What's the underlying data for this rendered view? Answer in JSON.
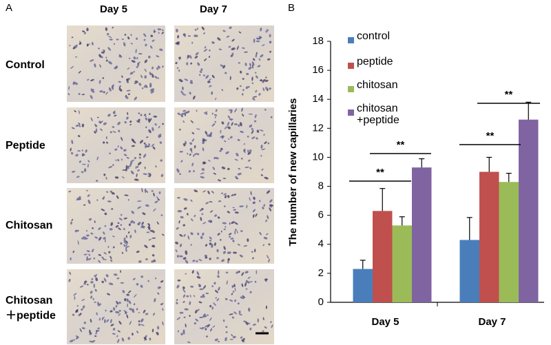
{
  "panel_a": {
    "label": "A",
    "columns": [
      "Day 5",
      "Day 7"
    ],
    "rows": [
      "Control",
      "Peptide",
      "Chitosan",
      "Chitosan\n＋peptide"
    ]
  },
  "chart_data": {
    "type": "bar",
    "panel_label": "B",
    "y_label": "The number of new capillaries",
    "categories": [
      "Day 5",
      "Day 7"
    ],
    "series": [
      {
        "name": "control",
        "color": "#4a7ebb",
        "values": [
          2.3,
          4.3
        ],
        "errors": [
          0.6,
          1.55
        ]
      },
      {
        "name": "peptide",
        "color": "#c0504d",
        "values": [
          6.3,
          9.0
        ],
        "errors": [
          1.55,
          1.0
        ]
      },
      {
        "name": "chitosan",
        "color": "#9bbb59",
        "values": [
          5.3,
          8.3
        ],
        "errors": [
          0.6,
          0.6
        ]
      },
      {
        "name": "chitosan\n+peptide",
        "color": "#8064a2",
        "values": [
          9.3,
          12.6
        ],
        "errors": [
          0.6,
          1.2
        ]
      }
    ],
    "ylim": [
      0,
      18
    ],
    "yticks": [
      0,
      2,
      4,
      6,
      8,
      10,
      12,
      14,
      16,
      18
    ],
    "grid": false,
    "significance": [
      "**",
      "**",
      "**",
      "**"
    ]
  }
}
